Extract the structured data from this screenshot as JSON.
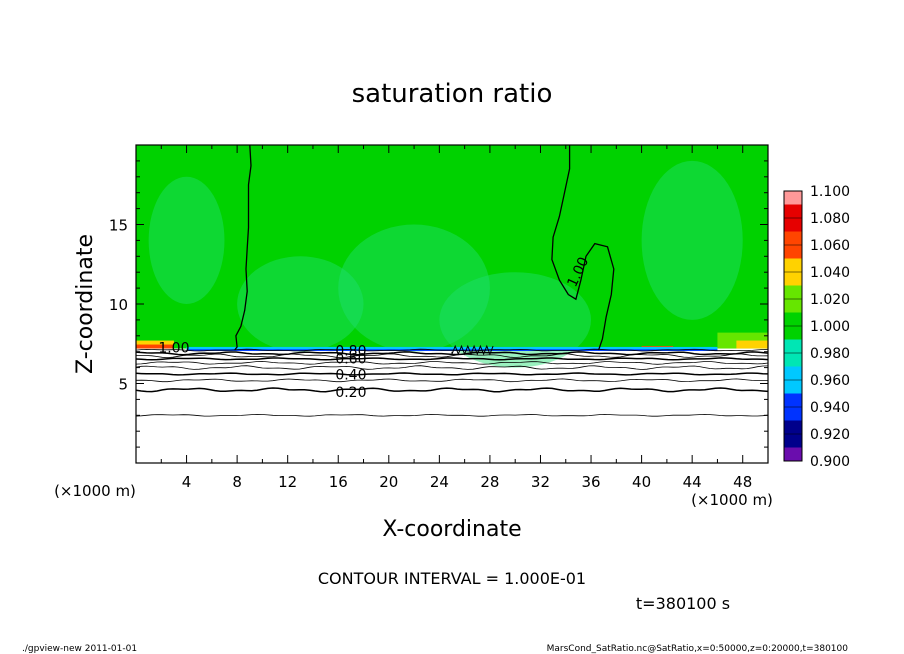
{
  "chart_data": {
    "type": "heatmap",
    "title": "saturation ratio",
    "xlabel": "X-coordinate",
    "ylabel": "Z-coordinate",
    "x_unit": "(×1000 m)",
    "y_unit": "(×1000 m)",
    "xlim": [
      0,
      50
    ],
    "ylim": [
      0,
      20
    ],
    "x_ticks": [
      4,
      8,
      12,
      16,
      20,
      24,
      28,
      32,
      36,
      40,
      44,
      48
    ],
    "y_ticks": [
      5,
      10,
      15
    ],
    "colorbar": {
      "levels": [
        0.9,
        0.92,
        0.94,
        0.96,
        0.98,
        1.0,
        1.02,
        1.04,
        1.06,
        1.08,
        1.1
      ],
      "labels": [
        "0.900",
        "0.920",
        "0.940",
        "0.960",
        "0.980",
        "1.000",
        "1.020",
        "1.040",
        "1.060",
        "1.080",
        "1.100"
      ],
      "colors": [
        "#6a0dad",
        "#00008b",
        "#0033ff",
        "#00c8ff",
        "#00e6b4",
        "#00d200",
        "#66e600",
        "#ffd200",
        "#ff4500",
        "#e60000",
        "#ff9999"
      ]
    },
    "contour_labels": [
      {
        "text": "1.00",
        "x": 3.0,
        "y": 7.2
      },
      {
        "text": "1.00",
        "x": 35.0,
        "y": 12.0
      },
      {
        "text": "0.80",
        "x": 17.0,
        "y": 7.0
      },
      {
        "text": "0.60",
        "x": 17.0,
        "y": 6.5
      },
      {
        "text": "0.40",
        "x": 17.0,
        "y": 5.5
      },
      {
        "text": "0.20",
        "x": 17.0,
        "y": 4.4
      }
    ],
    "contour_interval_text": "CONTOUR INTERVAL = 1.000E-01",
    "time_text": "t=380100 s"
  },
  "footer": {
    "left": "./gpview-new  2011-01-01",
    "right": "MarsCond_SatRatio.nc@SatRatio,x=0:50000,z=0:20000,t=380100"
  }
}
